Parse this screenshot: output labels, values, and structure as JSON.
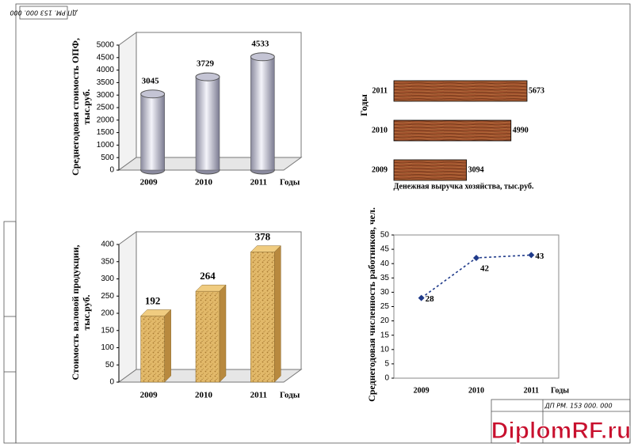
{
  "chart_data": [
    {
      "type": "bar",
      "shape": "cylinder",
      "color": "#c4c4d4",
      "ylabel": [
        "Среднегодовая стоимость ОПФ,",
        "тыс.руб."
      ],
      "xlabel": "Годы",
      "categories": [
        "2009",
        "2010",
        "2011"
      ],
      "values": [
        3045,
        3729,
        4533
      ],
      "ylim": [
        0,
        5000
      ],
      "yticks": [
        0,
        500,
        1000,
        1500,
        2000,
        2500,
        3000,
        3500,
        4000,
        4500,
        5000
      ],
      "grid": false
    },
    {
      "type": "barh",
      "color": "#a0522d",
      "ylabel": "Годы",
      "xlabel": "Денежная выручка хозяйства, тыс.руб.",
      "categories": [
        "2009",
        "2010",
        "2011"
      ],
      "values": [
        3094,
        4990,
        5673
      ]
    },
    {
      "type": "bar",
      "shape": "box",
      "color": "#e2b96a",
      "ylabel": [
        "Стоимость валовой продукции,",
        "тыс.руб."
      ],
      "xlabel": "Годы",
      "categories": [
        "2009",
        "2010",
        "2011"
      ],
      "values": [
        192,
        264,
        378
      ],
      "ylim": [
        0,
        400
      ],
      "yticks": [
        0,
        50,
        100,
        150,
        200,
        250,
        300,
        350,
        400
      ],
      "grid": false
    },
    {
      "type": "line",
      "color": "#1f3a8a",
      "ylabel": "Среднегодовая численность работников, чел.",
      "xlabel": "Годы",
      "categories": [
        "2009",
        "2010",
        "2011"
      ],
      "values": [
        28,
        42,
        43
      ],
      "ylim": [
        0,
        50
      ],
      "yticks": [
        0,
        5,
        10,
        15,
        20,
        25,
        30,
        35,
        40,
        45,
        50
      ],
      "grid": false
    }
  ],
  "stamp": {
    "code": "ДП РМ. 153 000. 000"
  },
  "watermark": "DiplomRF.ru"
}
